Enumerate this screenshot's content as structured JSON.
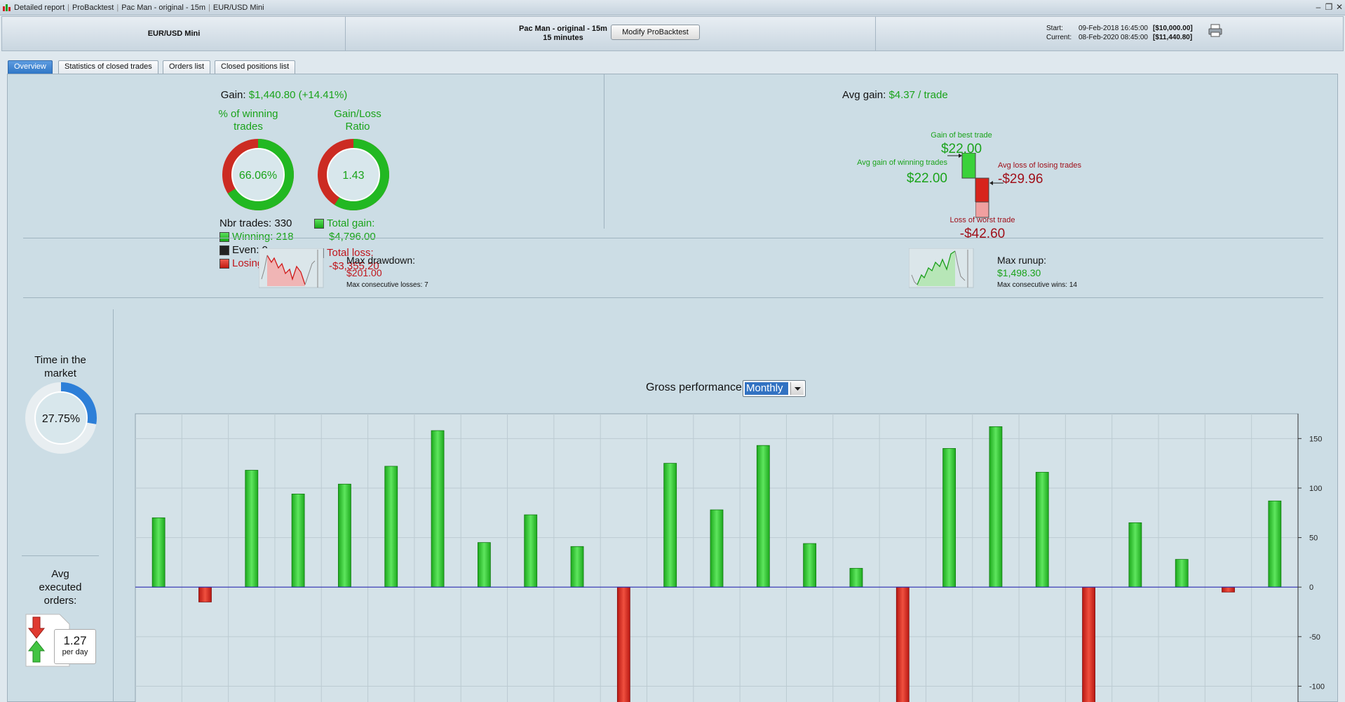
{
  "titlebar": {
    "parts": [
      "Detailed report",
      "ProBacktest",
      "Pac Man - original - 15m",
      "EUR/USD Mini"
    ],
    "min": "‒",
    "restore": "❐",
    "close": "✕"
  },
  "header": {
    "instrument": "EUR/USD Mini",
    "strategy": "Pac Man - original - 15m",
    "timeframe": "15 minutes",
    "modify_button": "Modify ProBacktest",
    "start_label": "Start:",
    "start_date": "09-Feb-2018 16:45:00",
    "start_capital": "[$10,000.00]",
    "current_label": "Current:",
    "current_date": "08-Feb-2020 08:45:00",
    "current_capital": "[$11,440.80]"
  },
  "tabs": [
    "Overview",
    "Statistics of closed trades",
    "Orders list",
    "Closed positions list"
  ],
  "gain": {
    "label": "Gain:",
    "value": "$1,440.80 (+14.41%)"
  },
  "winning_pct": {
    "title_line1": "% of winning",
    "title_line2": "trades",
    "value": "66.06%",
    "fraction": 0.6606
  },
  "gl_ratio": {
    "title_line1": "Gain/Loss",
    "title_line2": "Ratio",
    "value": "1.43",
    "fraction": 0.588
  },
  "trades": {
    "nbr": "Nbr trades: 330",
    "winning": "Winning: 218",
    "even": "Even: 0",
    "losing": "Losing: 112"
  },
  "totals": {
    "gain_label": "Total gain:",
    "gain_value": "$4,796.00",
    "loss_label": "Total loss:",
    "loss_value": "-$3,355.20"
  },
  "avg_gain": {
    "label": "Avg gain:",
    "value": "$4.37 / trade"
  },
  "trade_stats": {
    "best_label": "Gain of best trade",
    "best_value": "$22.00",
    "avg_win_label": "Avg gain of winning trades",
    "avg_win_value": "$22.00",
    "avg_loss_label": "Avg loss of losing trades",
    "avg_loss_value": "-$29.96",
    "worst_label": "Loss of worst trade",
    "worst_value": "-$42.60"
  },
  "drawdown": {
    "label": "Max drawdown:",
    "value": "$201.00",
    "consec": "Max consecutive losses: 7"
  },
  "runup": {
    "label": "Max runup:",
    "value": "$1,498.30",
    "consec": "Max consecutive wins: 14"
  },
  "time_in_market": {
    "title_line1": "Time in the",
    "title_line2": "market",
    "value": "27.75%",
    "fraction": 0.2775
  },
  "avg_orders": {
    "title_line1": "Avg",
    "title_line2": "executed",
    "title_line3": "orders:",
    "value": "1.27",
    "unit": "per day"
  },
  "perf": {
    "label": "Gross performance",
    "period": "Monthly"
  },
  "colors": {
    "gain": "#1aa31a",
    "loss": "#c0151b",
    "accent": "#2f76c6",
    "zero_line": "#2b2bb0"
  },
  "chart_data": {
    "type": "bar",
    "title": "Gross performance",
    "ylim": [
      -145,
      175
    ],
    "yticks": [
      150,
      100,
      50,
      0,
      -50,
      -100
    ],
    "grid": true,
    "values": [
      70,
      -15,
      118,
      94,
      104,
      122,
      158,
      45,
      73,
      41,
      -122,
      125,
      78,
      143,
      44,
      19,
      -135,
      140,
      162,
      116,
      -124,
      65,
      28,
      -5,
      87
    ]
  }
}
